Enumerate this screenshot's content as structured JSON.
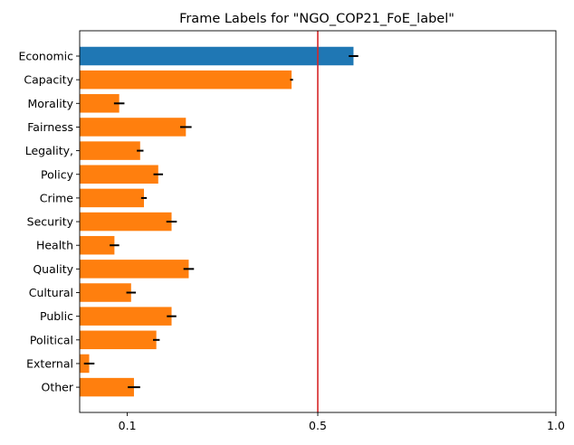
{
  "chart_data": {
    "type": "bar",
    "orientation": "horizontal",
    "title": "Frame Labels for \"NGO_COP21_FoE_label\"",
    "xlabel": "",
    "ylabel": "",
    "categories": [
      "Economic",
      "Capacity",
      "Morality",
      "Fairness",
      "Legality,",
      "Policy",
      "Crime",
      "Security",
      "Health",
      "Quality",
      "Cultural",
      "Public",
      "Political",
      "External",
      "Other"
    ],
    "values": [
      0.575,
      0.445,
      0.083,
      0.223,
      0.127,
      0.165,
      0.135,
      0.193,
      0.073,
      0.229,
      0.108,
      0.193,
      0.161,
      0.02,
      0.114
    ],
    "errors": [
      0.01,
      0.003,
      0.011,
      0.012,
      0.007,
      0.01,
      0.006,
      0.011,
      0.01,
      0.011,
      0.01,
      0.01,
      0.007,
      0.011,
      0.013
    ],
    "bar_colors": [
      "#1f77b4",
      "#ff7f0e",
      "#ff7f0e",
      "#ff7f0e",
      "#ff7f0e",
      "#ff7f0e",
      "#ff7f0e",
      "#ff7f0e",
      "#ff7f0e",
      "#ff7f0e",
      "#ff7f0e",
      "#ff7f0e",
      "#ff7f0e",
      "#ff7f0e",
      "#ff7f0e"
    ],
    "xlim": [
      0.0,
      1.0
    ],
    "xticks": [
      0.1,
      0.5,
      1.0
    ],
    "xtick_labels": [
      "0.1",
      "0.5",
      "1.0"
    ],
    "reference_line": {
      "x": 0.5,
      "color": "#d62728"
    },
    "grid": false,
    "legend": "none"
  }
}
